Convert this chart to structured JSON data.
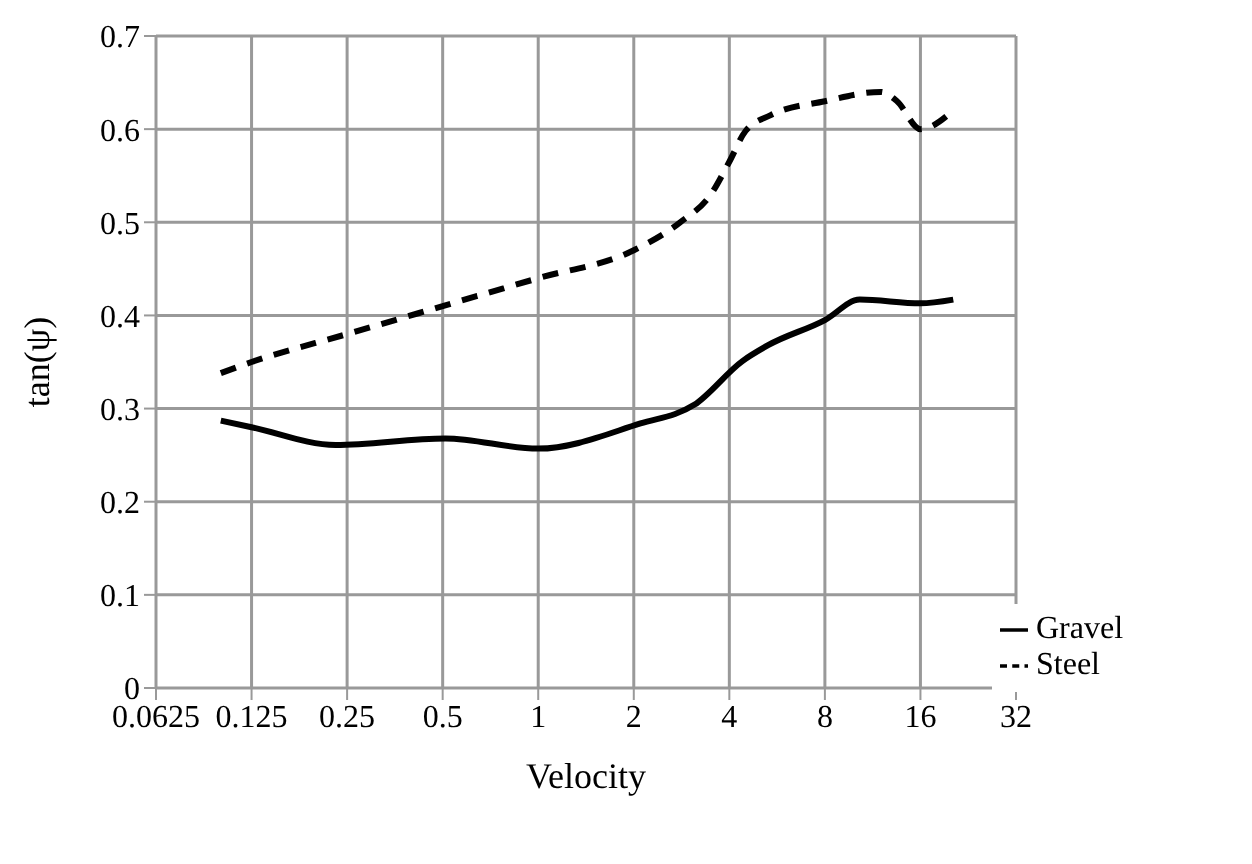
{
  "chart_data": {
    "type": "line",
    "xlabel": "Velocity",
    "ylabel": "tan(ψ)",
    "log": "x",
    "xlim": [
      0.0625,
      32
    ],
    "xticks": [
      0.0625,
      0.125,
      0.25,
      0.5,
      1,
      2,
      4,
      8,
      16,
      32
    ],
    "ylim": [
      0,
      0.7
    ],
    "yticks": [
      0,
      0.1,
      0.2,
      0.3,
      0.4,
      0.5,
      0.6,
      0.7
    ],
    "grid": true,
    "legend": "bottom right",
    "marker": "none",
    "series": [
      {
        "name": "Steel",
        "color": "#000000",
        "line_style": "dashed",
        "x": [
          0.1,
          0.125,
          0.25,
          0.5,
          1,
          2,
          2.8,
          3.5,
          4,
          4.5,
          5.4,
          8,
          12,
          13.5,
          16,
          20.3
        ],
        "values": [
          0.338,
          0.35,
          0.38,
          0.41,
          0.44,
          0.47,
          0.5,
          0.53,
          0.565,
          0.598,
          0.615,
          0.63,
          0.64,
          0.63,
          0.6,
          0.62
        ]
      },
      {
        "name": "Gravel",
        "color": "#000000",
        "line_style": "solid",
        "x": [
          0.1,
          0.125,
          0.23,
          0.51,
          1,
          2.1,
          3.1,
          4.4,
          5.3,
          8,
          10.3,
          16,
          20.3
        ],
        "values": [
          0.287,
          0.28,
          0.261,
          0.268,
          0.257,
          0.284,
          0.304,
          0.351,
          0.368,
          0.395,
          0.417,
          0.413,
          0.417
        ]
      }
    ]
  }
}
